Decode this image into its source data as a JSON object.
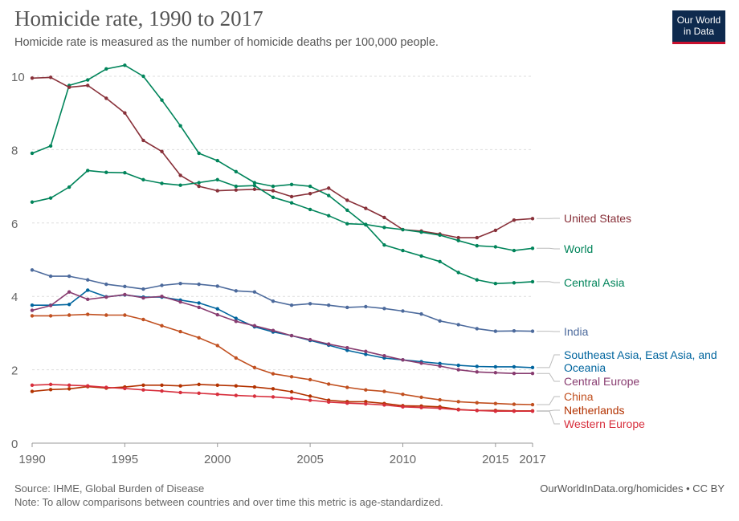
{
  "header": {
    "title": "Homicide rate, 1990 to 2017",
    "subtitle": "Homicide rate is measured as the number of homicide deaths per 100,000 people."
  },
  "logo": {
    "line1": "Our World",
    "line2": "in Data",
    "bg": "#0e2a4e",
    "accent": "#c8102e"
  },
  "footer": {
    "source": "Source: IHME, Global Burden of Disease",
    "note": "Note: To allow comparisons between countries and over time this metric is age-standardized.",
    "url": "OurWorldInData.org/homicides • CC BY"
  },
  "chart_data": {
    "type": "line",
    "title": "Homicide rate, 1990 to 2017",
    "xlabel": "",
    "ylabel": "",
    "xlim": [
      1990,
      2017
    ],
    "ylim": [
      0,
      10.5
    ],
    "grid": true,
    "x": [
      1990,
      1991,
      1992,
      1993,
      1994,
      1995,
      1996,
      1997,
      1998,
      1999,
      2000,
      2001,
      2002,
      2003,
      2004,
      2005,
      2006,
      2007,
      2008,
      2009,
      2010,
      2011,
      2012,
      2013,
      2014,
      2015,
      2016,
      2017
    ],
    "x_ticks": [
      "1990",
      "1995",
      "2000",
      "2005",
      "2010",
      "2015",
      "2017"
    ],
    "y_ticks": [
      "0",
      "2",
      "4",
      "6",
      "8",
      "10"
    ],
    "series": [
      {
        "name": "Central Asia",
        "label_lines": [
          "Central Asia"
        ],
        "color": "#00845a",
        "values": [
          7.9,
          8.1,
          9.75,
          9.9,
          10.2,
          10.3,
          10.0,
          9.35,
          8.65,
          7.9,
          7.7,
          7.4,
          7.1,
          7.0,
          7.05,
          7.0,
          6.75,
          6.35,
          5.95,
          5.4,
          5.25,
          5.1,
          4.95,
          4.65,
          4.45,
          4.35,
          4.37,
          4.4
        ]
      },
      {
        "name": "United States",
        "label_lines": [
          "United States"
        ],
        "color": "#883039",
        "values": [
          9.95,
          9.97,
          9.7,
          9.75,
          9.4,
          9.0,
          8.25,
          7.95,
          7.3,
          7.0,
          6.88,
          6.9,
          6.92,
          6.88,
          6.72,
          6.8,
          6.95,
          6.62,
          6.4,
          6.15,
          5.82,
          5.78,
          5.7,
          5.6,
          5.6,
          5.8,
          6.08,
          6.12
        ]
      },
      {
        "name": "World",
        "label_lines": [
          "World"
        ],
        "color": "#00845a",
        "values": [
          6.57,
          6.68,
          6.98,
          7.43,
          7.38,
          7.37,
          7.18,
          7.08,
          7.03,
          7.1,
          7.18,
          7.0,
          7.02,
          6.7,
          6.55,
          6.37,
          6.2,
          5.98,
          5.96,
          5.88,
          5.82,
          5.75,
          5.67,
          5.52,
          5.38,
          5.35,
          5.25,
          5.31
        ]
      },
      {
        "name": "India",
        "label_lines": [
          "India"
        ],
        "color": "#4c6a9c",
        "values": [
          4.72,
          4.55,
          4.55,
          4.45,
          4.33,
          4.27,
          4.2,
          4.3,
          4.35,
          4.33,
          4.28,
          4.15,
          4.12,
          3.87,
          3.76,
          3.8,
          3.76,
          3.7,
          3.72,
          3.67,
          3.6,
          3.52,
          3.33,
          3.23,
          3.12,
          3.05,
          3.06,
          3.05
        ]
      },
      {
        "name": "Southeast Asia, East Asia, and Oceania",
        "label_lines": [
          "Southeast Asia, East Asia, and",
          "Oceania"
        ],
        "color": "#00659e",
        "values": [
          3.76,
          3.76,
          3.78,
          4.17,
          3.99,
          4.04,
          3.98,
          3.98,
          3.9,
          3.82,
          3.66,
          3.4,
          3.17,
          3.03,
          2.93,
          2.8,
          2.67,
          2.53,
          2.42,
          2.32,
          2.27,
          2.22,
          2.17,
          2.12,
          2.09,
          2.08,
          2.08,
          2.06
        ]
      },
      {
        "name": "Central Europe",
        "label_lines": [
          "Central Europe"
        ],
        "color": "#883c70",
        "values": [
          3.62,
          3.75,
          4.12,
          3.92,
          3.98,
          4.05,
          3.96,
          4.0,
          3.85,
          3.7,
          3.5,
          3.32,
          3.2,
          3.07,
          2.93,
          2.82,
          2.7,
          2.6,
          2.5,
          2.38,
          2.27,
          2.18,
          2.1,
          2.0,
          1.94,
          1.92,
          1.9,
          1.9
        ]
      },
      {
        "name": "China",
        "label_lines": [
          "China"
        ],
        "color": "#c15020",
        "values": [
          3.47,
          3.47,
          3.49,
          3.51,
          3.49,
          3.49,
          3.37,
          3.2,
          3.04,
          2.87,
          2.66,
          2.32,
          2.06,
          1.89,
          1.81,
          1.73,
          1.61,
          1.52,
          1.45,
          1.41,
          1.33,
          1.25,
          1.18,
          1.13,
          1.1,
          1.08,
          1.06,
          1.05
        ]
      },
      {
        "name": "Netherlands",
        "label_lines": [
          "Netherlands"
        ],
        "color": "#b33200",
        "values": [
          1.41,
          1.46,
          1.48,
          1.54,
          1.5,
          1.53,
          1.58,
          1.58,
          1.56,
          1.6,
          1.58,
          1.56,
          1.53,
          1.48,
          1.4,
          1.28,
          1.17,
          1.13,
          1.13,
          1.08,
          1.02,
          1.01,
          0.99,
          0.92,
          0.89,
          0.89,
          0.88,
          0.88
        ]
      },
      {
        "name": "Western Europe",
        "label_lines": [
          "Western Europe"
        ],
        "color": "#d72e3c",
        "values": [
          1.58,
          1.6,
          1.58,
          1.56,
          1.52,
          1.49,
          1.45,
          1.42,
          1.38,
          1.36,
          1.33,
          1.3,
          1.28,
          1.26,
          1.22,
          1.17,
          1.12,
          1.09,
          1.07,
          1.04,
          0.99,
          0.97,
          0.95,
          0.91,
          0.89,
          0.87,
          0.87,
          0.87
        ]
      }
    ]
  }
}
